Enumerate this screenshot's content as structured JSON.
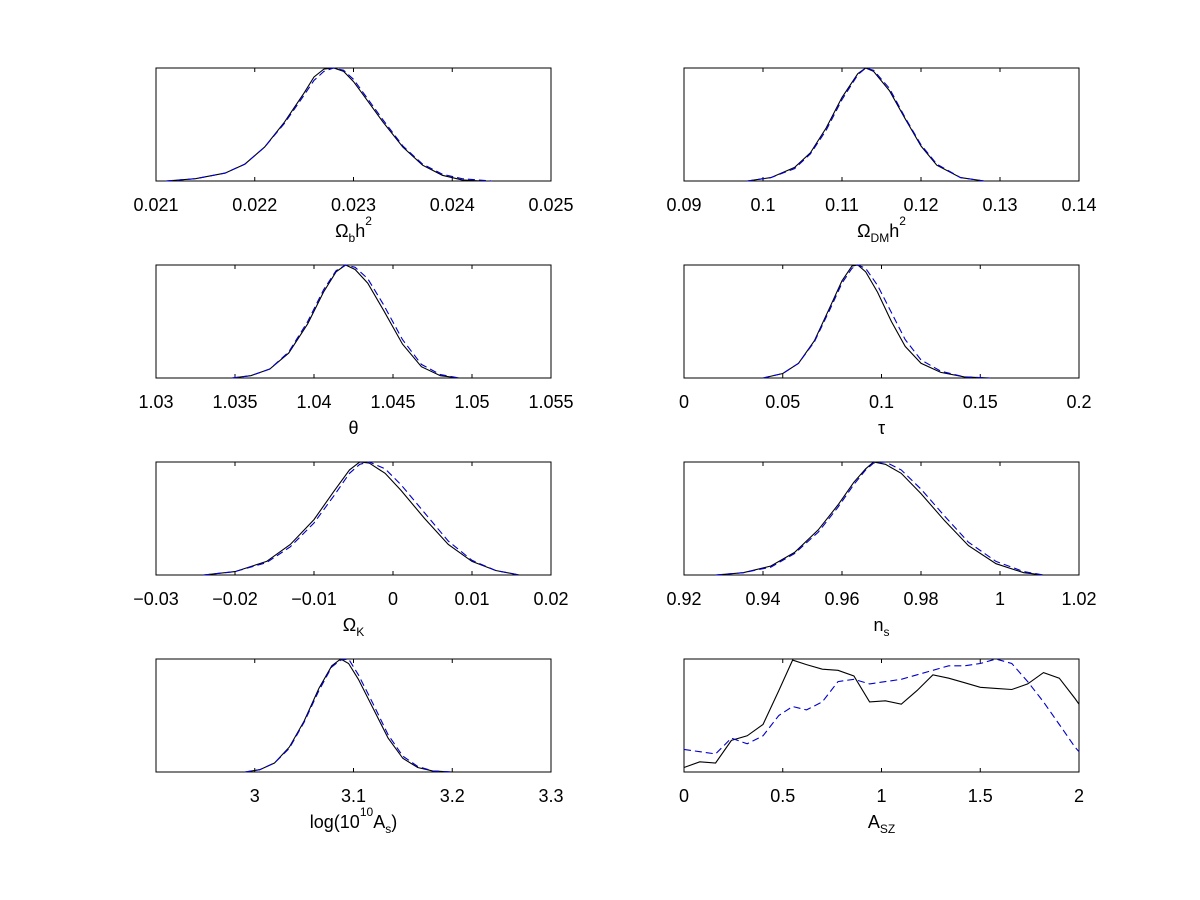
{
  "colors": {
    "solid": "#000000",
    "dashed": "#0000cc"
  },
  "chart_data": [
    {
      "type": "line",
      "xlim": [
        0.021,
        0.025
      ],
      "xticks": [
        "0.021",
        "0.022",
        "0.023",
        "0.024",
        "0.025"
      ],
      "xlabel": {
        "parts": [
          [
            "Ω",
            ""
          ],
          [
            "b",
            "sub"
          ],
          [
            "h",
            ""
          ],
          [
            "2",
            "sup"
          ]
        ]
      },
      "ylim": [
        0,
        1
      ],
      "series": [
        {
          "style": "solid",
          "x": [
            0.0211,
            0.0214,
            0.0217,
            0.0219,
            0.0221,
            0.0223,
            0.0225,
            0.0226,
            0.0227,
            0.0228,
            0.0229,
            0.023,
            0.0231,
            0.0233,
            0.0235,
            0.0237,
            0.0239,
            0.0241,
            0.0243
          ],
          "y": [
            0.0,
            0.02,
            0.07,
            0.15,
            0.3,
            0.52,
            0.78,
            0.92,
            0.99,
            1.0,
            0.97,
            0.88,
            0.76,
            0.52,
            0.3,
            0.14,
            0.05,
            0.01,
            0.0
          ]
        },
        {
          "style": "dashed",
          "x": [
            0.0211,
            0.0214,
            0.0217,
            0.0219,
            0.0221,
            0.0223,
            0.0225,
            0.0226,
            0.0227,
            0.0228,
            0.0229,
            0.023,
            0.0231,
            0.0233,
            0.0235,
            0.0237,
            0.0239,
            0.0241,
            0.0244
          ],
          "y": [
            0.0,
            0.02,
            0.07,
            0.15,
            0.3,
            0.51,
            0.76,
            0.89,
            0.97,
            1.0,
            0.98,
            0.9,
            0.78,
            0.54,
            0.31,
            0.15,
            0.06,
            0.02,
            0.0
          ]
        }
      ]
    },
    {
      "type": "line",
      "xlim": [
        0.09,
        0.14
      ],
      "xticks": [
        "0.09",
        "0.1",
        "0.11",
        "0.12",
        "0.13",
        "0.14"
      ],
      "xlabel": {
        "parts": [
          [
            "Ω",
            ""
          ],
          [
            "DM",
            "sub"
          ],
          [
            "h",
            ""
          ],
          [
            "2",
            "sup"
          ]
        ]
      },
      "ylim": [
        0,
        1
      ],
      "series": [
        {
          "style": "solid",
          "x": [
            0.098,
            0.101,
            0.104,
            0.106,
            0.108,
            0.11,
            0.112,
            0.113,
            0.114,
            0.116,
            0.118,
            0.12,
            0.122,
            0.125,
            0.128
          ],
          "y": [
            0.0,
            0.03,
            0.12,
            0.25,
            0.47,
            0.74,
            0.95,
            1.0,
            0.97,
            0.8,
            0.55,
            0.31,
            0.14,
            0.03,
            0.0
          ]
        },
        {
          "style": "dashed",
          "x": [
            0.098,
            0.101,
            0.104,
            0.106,
            0.108,
            0.11,
            0.112,
            0.113,
            0.114,
            0.116,
            0.118,
            0.12,
            0.122,
            0.125,
            0.128
          ],
          "y": [
            0.0,
            0.03,
            0.11,
            0.24,
            0.45,
            0.72,
            0.94,
            1.0,
            0.98,
            0.82,
            0.56,
            0.32,
            0.15,
            0.03,
            0.0
          ]
        }
      ]
    },
    {
      "type": "line",
      "xlim": [
        1.03,
        1.055
      ],
      "xticks": [
        "1.03",
        "1.035",
        "1.04",
        "1.045",
        "1.05",
        "1.055"
      ],
      "xlabel": {
        "parts": [
          [
            "θ",
            ""
          ]
        ]
      },
      "ylim": [
        0,
        1
      ],
      "series": [
        {
          "style": "solid",
          "x": [
            1.0348,
            1.036,
            1.0372,
            1.0384,
            1.0396,
            1.0406,
            1.0414,
            1.042,
            1.0426,
            1.0434,
            1.0444,
            1.0456,
            1.0468,
            1.048,
            1.0492
          ],
          "y": [
            0.0,
            0.02,
            0.08,
            0.22,
            0.48,
            0.76,
            0.94,
            1.0,
            0.96,
            0.84,
            0.6,
            0.3,
            0.1,
            0.02,
            0.0
          ]
        },
        {
          "style": "dashed",
          "x": [
            1.0348,
            1.036,
            1.0372,
            1.0384,
            1.0396,
            1.0406,
            1.0414,
            1.042,
            1.0426,
            1.0434,
            1.0444,
            1.0456,
            1.0468,
            1.048,
            1.0492
          ],
          "y": [
            0.0,
            0.02,
            0.08,
            0.23,
            0.5,
            0.78,
            0.95,
            1.0,
            0.98,
            0.88,
            0.65,
            0.34,
            0.12,
            0.03,
            0.0
          ]
        }
      ]
    },
    {
      "type": "line",
      "xlim": [
        0,
        0.2
      ],
      "xticks": [
        "0",
        "0.05",
        "0.1",
        "0.15",
        "0.2"
      ],
      "xlabel": {
        "parts": [
          [
            "τ",
            ""
          ]
        ]
      },
      "ylim": [
        0,
        1
      ],
      "series": [
        {
          "style": "solid",
          "x": [
            0.04,
            0.05,
            0.058,
            0.066,
            0.074,
            0.08,
            0.085,
            0.088,
            0.092,
            0.098,
            0.105,
            0.112,
            0.12,
            0.13,
            0.142,
            0.155
          ],
          "y": [
            0.0,
            0.04,
            0.13,
            0.33,
            0.63,
            0.86,
            0.99,
            1.0,
            0.94,
            0.76,
            0.5,
            0.28,
            0.13,
            0.05,
            0.01,
            0.0
          ]
        },
        {
          "style": "dashed",
          "x": [
            0.04,
            0.05,
            0.058,
            0.066,
            0.074,
            0.08,
            0.085,
            0.088,
            0.092,
            0.098,
            0.105,
            0.112,
            0.12,
            0.13,
            0.142,
            0.155
          ],
          "y": [
            0.0,
            0.04,
            0.13,
            0.32,
            0.61,
            0.84,
            0.97,
            1.0,
            0.97,
            0.82,
            0.58,
            0.34,
            0.16,
            0.06,
            0.01,
            0.0
          ]
        }
      ]
    },
    {
      "type": "line",
      "xlim": [
        -0.03,
        0.02
      ],
      "xticks": [
        "−0.03",
        "−0.02",
        "−0.01",
        "0",
        "0.01",
        "0.02"
      ],
      "xlabel": {
        "parts": [
          [
            "Ω",
            ""
          ],
          [
            "K",
            "sub"
          ]
        ]
      },
      "ylim": [
        0,
        1
      ],
      "series": [
        {
          "style": "solid",
          "x": [
            -0.024,
            -0.02,
            -0.016,
            -0.013,
            -0.01,
            -0.0075,
            -0.0055,
            -0.0042,
            -0.003,
            -0.001,
            0.001,
            0.004,
            0.007,
            0.01,
            0.013,
            0.016
          ],
          "y": [
            0.0,
            0.03,
            0.12,
            0.27,
            0.49,
            0.74,
            0.93,
            1.0,
            0.99,
            0.9,
            0.75,
            0.5,
            0.27,
            0.12,
            0.04,
            0.0
          ]
        },
        {
          "style": "dashed",
          "x": [
            -0.024,
            -0.02,
            -0.016,
            -0.013,
            -0.01,
            -0.0075,
            -0.0055,
            -0.0042,
            -0.003,
            -0.001,
            0.001,
            0.004,
            0.007,
            0.01,
            0.013,
            0.016
          ],
          "y": [
            0.0,
            0.03,
            0.11,
            0.25,
            0.46,
            0.7,
            0.9,
            0.98,
            1.0,
            0.94,
            0.8,
            0.55,
            0.3,
            0.13,
            0.04,
            0.0
          ]
        }
      ]
    },
    {
      "type": "line",
      "xlim": [
        0.92,
        1.02
      ],
      "xticks": [
        "0.92",
        "0.94",
        "0.96",
        "0.98",
        "1",
        "1.02"
      ],
      "xlabel": {
        "parts": [
          [
            "n",
            ""
          ],
          [
            "s",
            "sub"
          ]
        ]
      },
      "ylim": [
        0,
        1
      ],
      "series": [
        {
          "style": "solid",
          "x": [
            0.928,
            0.935,
            0.942,
            0.948,
            0.954,
            0.959,
            0.963,
            0.966,
            0.968,
            0.971,
            0.975,
            0.98,
            0.986,
            0.992,
            0.999,
            1.006,
            1.011
          ],
          "y": [
            0.0,
            0.02,
            0.08,
            0.2,
            0.4,
            0.62,
            0.82,
            0.94,
            1.0,
            0.98,
            0.9,
            0.72,
            0.48,
            0.26,
            0.1,
            0.02,
            0.0
          ]
        },
        {
          "style": "dashed",
          "x": [
            0.928,
            0.935,
            0.942,
            0.948,
            0.954,
            0.959,
            0.963,
            0.966,
            0.968,
            0.971,
            0.975,
            0.98,
            0.986,
            0.992,
            0.999,
            1.006,
            1.011
          ],
          "y": [
            0.0,
            0.02,
            0.07,
            0.19,
            0.38,
            0.6,
            0.8,
            0.93,
            0.99,
            1.0,
            0.93,
            0.76,
            0.52,
            0.29,
            0.12,
            0.03,
            0.0
          ]
        }
      ]
    },
    {
      "type": "line",
      "xlim": [
        2.9,
        3.3
      ],
      "xticks": [
        "3",
        "3.1",
        "3.2",
        "3.3"
      ],
      "xticks_values": [
        3.0,
        3.1,
        3.2,
        3.3
      ],
      "xlabel": {
        "parts": [
          [
            "log(10",
            ""
          ],
          [
            "10",
            "sup"
          ],
          [
            "A",
            ""
          ],
          [
            "s",
            "sub"
          ],
          [
            ")",
            ""
          ]
        ]
      },
      "ylim": [
        0,
        1
      ],
      "series": [
        {
          "style": "solid",
          "x": [
            2.99,
            3.005,
            3.02,
            3.035,
            3.05,
            3.065,
            3.078,
            3.087,
            3.095,
            3.105,
            3.12,
            3.135,
            3.15,
            3.165,
            3.18,
            3.2
          ],
          "y": [
            0.0,
            0.02,
            0.08,
            0.22,
            0.45,
            0.74,
            0.94,
            1.0,
            0.96,
            0.82,
            0.56,
            0.3,
            0.12,
            0.04,
            0.01,
            0.0
          ]
        },
        {
          "style": "dashed",
          "x": [
            2.99,
            3.005,
            3.02,
            3.035,
            3.05,
            3.065,
            3.078,
            3.087,
            3.095,
            3.105,
            3.12,
            3.135,
            3.15,
            3.165,
            3.18,
            3.2
          ],
          "y": [
            0.0,
            0.02,
            0.08,
            0.21,
            0.44,
            0.72,
            0.93,
            0.99,
            1.0,
            0.86,
            0.6,
            0.33,
            0.14,
            0.05,
            0.01,
            0.0
          ]
        }
      ]
    },
    {
      "type": "line",
      "xlim": [
        0,
        2
      ],
      "xticks": [
        "0",
        "0.5",
        "1",
        "1.5",
        "2"
      ],
      "xlabel": {
        "parts": [
          [
            "A",
            ""
          ],
          [
            "SZ",
            "sub"
          ]
        ]
      },
      "ylim": [
        0,
        1
      ],
      "series": [
        {
          "style": "solid",
          "x": [
            0.0,
            0.08,
            0.16,
            0.24,
            0.32,
            0.4,
            0.48,
            0.55,
            0.62,
            0.7,
            0.78,
            0.86,
            0.94,
            1.02,
            1.1,
            1.18,
            1.26,
            1.34,
            1.42,
            1.5,
            1.58,
            1.66,
            1.74,
            1.82,
            1.9,
            1.98,
            2.0
          ],
          "y": [
            0.04,
            0.09,
            0.08,
            0.28,
            0.32,
            0.42,
            0.72,
            0.99,
            0.95,
            0.91,
            0.9,
            0.85,
            0.62,
            0.63,
            0.6,
            0.72,
            0.86,
            0.83,
            0.79,
            0.75,
            0.74,
            0.73,
            0.78,
            0.88,
            0.83,
            0.65,
            0.6
          ]
        },
        {
          "style": "dashed",
          "x": [
            0.0,
            0.08,
            0.16,
            0.24,
            0.32,
            0.4,
            0.48,
            0.55,
            0.62,
            0.7,
            0.78,
            0.86,
            0.94,
            1.02,
            1.1,
            1.18,
            1.26,
            1.34,
            1.42,
            1.5,
            1.58,
            1.66,
            1.74,
            1.82,
            1.9,
            1.98,
            2.0
          ],
          "y": [
            0.2,
            0.18,
            0.16,
            0.3,
            0.25,
            0.32,
            0.5,
            0.58,
            0.55,
            0.62,
            0.8,
            0.82,
            0.78,
            0.8,
            0.82,
            0.86,
            0.9,
            0.94,
            0.94,
            0.96,
            1.0,
            0.96,
            0.8,
            0.62,
            0.42,
            0.22,
            0.18
          ]
        }
      ]
    }
  ]
}
